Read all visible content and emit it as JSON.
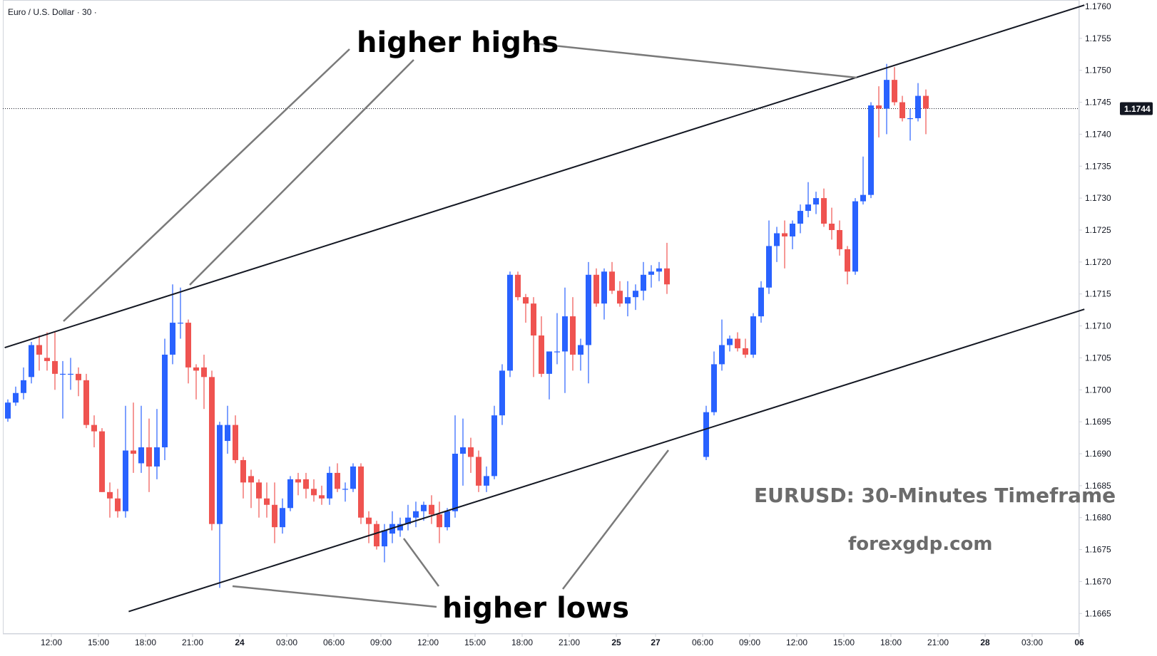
{
  "symbol_title": "Euro / U.S. Dollar · 30 ·",
  "current_price_label": "1.1744",
  "watermark": {
    "title": "EURUSD: 30-Minutes Timeframe",
    "site": "forexgdp.com"
  },
  "annotations": {
    "highs": "higher highs",
    "lows": "higher lows"
  },
  "colors": {
    "up": "#2962ff",
    "down": "#ef5350",
    "badge": "#131722",
    "trend": "#131722",
    "arrow": "#777777"
  },
  "chart_data": {
    "type": "candlestick",
    "x_ticks": [
      {
        "i": 6,
        "label": "12:00"
      },
      {
        "i": 12,
        "label": "15:00"
      },
      {
        "i": 18,
        "label": "18:00"
      },
      {
        "i": 24,
        "label": "21:00"
      },
      {
        "i": 30,
        "label": "24"
      },
      {
        "i": 36,
        "label": "03:00"
      },
      {
        "i": 42,
        "label": "06:00"
      },
      {
        "i": 48,
        "label": "09:00"
      },
      {
        "i": 54,
        "label": "12:00"
      },
      {
        "i": 60,
        "label": "15:00"
      },
      {
        "i": 66,
        "label": "18:00"
      },
      {
        "i": 72,
        "label": "21:00"
      },
      {
        "i": 78,
        "label": "25"
      },
      {
        "i": 83,
        "label": "27"
      },
      {
        "i": 89,
        "label": "06:00"
      },
      {
        "i": 95,
        "label": "09:00"
      },
      {
        "i": 101,
        "label": "12:00"
      },
      {
        "i": 107,
        "label": "15:00"
      },
      {
        "i": 113,
        "label": "18:00"
      },
      {
        "i": 119,
        "label": "21:00"
      },
      {
        "i": 125,
        "label": "28"
      },
      {
        "i": 131,
        "label": "03:00"
      },
      {
        "i": 137,
        "label": "06"
      }
    ],
    "y_ticks": [
      "1.1665",
      "1.1670",
      "1.1675",
      "1.1680",
      "1.1685",
      "1.1690",
      "1.1695",
      "1.1700",
      "1.1705",
      "1.1710",
      "1.1715",
      "1.1720",
      "1.1725",
      "1.1730",
      "1.1735",
      "1.1740",
      "1.1745",
      "1.1750",
      "1.1755",
      "1.1760"
    ],
    "ylim": [
      1.16618,
      1.1761
    ],
    "current_price": 1.1744,
    "candles": [
      {
        "o": 1.16955,
        "h": 1.16985,
        "l": 1.1695,
        "c": 1.1698
      },
      {
        "o": 1.1698,
        "h": 1.17005,
        "l": 1.16975,
        "c": 1.16995
      },
      {
        "o": 1.16995,
        "h": 1.17035,
        "l": 1.16985,
        "c": 1.17015
      },
      {
        "o": 1.1702,
        "h": 1.17075,
        "l": 1.1701,
        "c": 1.1707
      },
      {
        "o": 1.1707,
        "h": 1.17085,
        "l": 1.1703,
        "c": 1.17055
      },
      {
        "o": 1.1705,
        "h": 1.1709,
        "l": 1.1703,
        "c": 1.17045
      },
      {
        "o": 1.17045,
        "h": 1.1709,
        "l": 1.17,
        "c": 1.17025
      },
      {
        "o": 1.17025,
        "h": 1.17045,
        "l": 1.16955,
        "c": 1.17025
      },
      {
        "o": 1.17025,
        "h": 1.1705,
        "l": 1.17,
        "c": 1.17025
      },
      {
        "o": 1.17025,
        "h": 1.17035,
        "l": 1.1699,
        "c": 1.17015
      },
      {
        "o": 1.17015,
        "h": 1.17025,
        "l": 1.1694,
        "c": 1.16945
      },
      {
        "o": 1.16945,
        "h": 1.1696,
        "l": 1.1691,
        "c": 1.16935
      },
      {
        "o": 1.16935,
        "h": 1.1694,
        "l": 1.1684,
        "c": 1.1684
      },
      {
        "o": 1.1684,
        "h": 1.16855,
        "l": 1.168,
        "c": 1.1683
      },
      {
        "o": 1.1683,
        "h": 1.16845,
        "l": 1.168,
        "c": 1.1681
      },
      {
        "o": 1.1681,
        "h": 1.16975,
        "l": 1.168,
        "c": 1.16905
      },
      {
        "o": 1.16905,
        "h": 1.1698,
        "l": 1.1687,
        "c": 1.169
      },
      {
        "o": 1.16885,
        "h": 1.16975,
        "l": 1.1687,
        "c": 1.1691
      },
      {
        "o": 1.1691,
        "h": 1.16955,
        "l": 1.1684,
        "c": 1.1688
      },
      {
        "o": 1.1688,
        "h": 1.1697,
        "l": 1.1686,
        "c": 1.1691
      },
      {
        "o": 1.1691,
        "h": 1.1708,
        "l": 1.1689,
        "c": 1.17055
      },
      {
        "o": 1.17055,
        "h": 1.17165,
        "l": 1.1704,
        "c": 1.17105
      },
      {
        "o": 1.17105,
        "h": 1.1716,
        "l": 1.1708,
        "c": 1.17105
      },
      {
        "o": 1.17105,
        "h": 1.1711,
        "l": 1.1701,
        "c": 1.17035
      },
      {
        "o": 1.17035,
        "h": 1.1704,
        "l": 1.16985,
        "c": 1.1703
      },
      {
        "o": 1.17035,
        "h": 1.17055,
        "l": 1.1697,
        "c": 1.1702
      },
      {
        "o": 1.1702,
        "h": 1.1703,
        "l": 1.1678,
        "c": 1.1679
      },
      {
        "o": 1.1679,
        "h": 1.1695,
        "l": 1.1669,
        "c": 1.16945
      },
      {
        "o": 1.1692,
        "h": 1.16975,
        "l": 1.169,
        "c": 1.16945
      },
      {
        "o": 1.16945,
        "h": 1.1696,
        "l": 1.16885,
        "c": 1.1689
      },
      {
        "o": 1.1689,
        "h": 1.16895,
        "l": 1.1683,
        "c": 1.16855
      },
      {
        "o": 1.16865,
        "h": 1.16875,
        "l": 1.16815,
        "c": 1.16855
      },
      {
        "o": 1.16855,
        "h": 1.1686,
        "l": 1.168,
        "c": 1.1683
      },
      {
        "o": 1.1683,
        "h": 1.16855,
        "l": 1.168,
        "c": 1.1682
      },
      {
        "o": 1.1682,
        "h": 1.16855,
        "l": 1.1676,
        "c": 1.16785
      },
      {
        "o": 1.16785,
        "h": 1.1683,
        "l": 1.16775,
        "c": 1.16815
      },
      {
        "o": 1.16815,
        "h": 1.16865,
        "l": 1.1681,
        "c": 1.1686
      },
      {
        "o": 1.1686,
        "h": 1.1687,
        "l": 1.16835,
        "c": 1.16855
      },
      {
        "o": 1.1686,
        "h": 1.1687,
        "l": 1.1683,
        "c": 1.16845
      },
      {
        "o": 1.16845,
        "h": 1.1686,
        "l": 1.16825,
        "c": 1.16835
      },
      {
        "o": 1.16835,
        "h": 1.1685,
        "l": 1.1682,
        "c": 1.1683
      },
      {
        "o": 1.1683,
        "h": 1.1688,
        "l": 1.1682,
        "c": 1.1687
      },
      {
        "o": 1.1687,
        "h": 1.16885,
        "l": 1.1684,
        "c": 1.16845
      },
      {
        "o": 1.16845,
        "h": 1.16855,
        "l": 1.16825,
        "c": 1.16845
      },
      {
        "o": 1.16845,
        "h": 1.16885,
        "l": 1.1684,
        "c": 1.1688
      },
      {
        "o": 1.1688,
        "h": 1.16885,
        "l": 1.1679,
        "c": 1.168
      },
      {
        "o": 1.168,
        "h": 1.1681,
        "l": 1.1676,
        "c": 1.1679
      },
      {
        "o": 1.1679,
        "h": 1.16795,
        "l": 1.1675,
        "c": 1.16755
      },
      {
        "o": 1.16755,
        "h": 1.1679,
        "l": 1.1673,
        "c": 1.1678
      },
      {
        "o": 1.16775,
        "h": 1.1681,
        "l": 1.1676,
        "c": 1.1679
      },
      {
        "o": 1.1678,
        "h": 1.168,
        "l": 1.1677,
        "c": 1.1679
      },
      {
        "o": 1.1679,
        "h": 1.1682,
        "l": 1.1678,
        "c": 1.168
      },
      {
        "o": 1.168,
        "h": 1.16825,
        "l": 1.16785,
        "c": 1.1681
      },
      {
        "o": 1.1681,
        "h": 1.16825,
        "l": 1.16795,
        "c": 1.1682
      },
      {
        "o": 1.1682,
        "h": 1.16835,
        "l": 1.1679,
        "c": 1.16805
      },
      {
        "o": 1.16805,
        "h": 1.16825,
        "l": 1.1676,
        "c": 1.16785
      },
      {
        "o": 1.16785,
        "h": 1.16815,
        "l": 1.1678,
        "c": 1.1681
      },
      {
        "o": 1.1681,
        "h": 1.1696,
        "l": 1.168,
        "c": 1.169
      },
      {
        "o": 1.169,
        "h": 1.16955,
        "l": 1.1685,
        "c": 1.1691
      },
      {
        "o": 1.1691,
        "h": 1.16925,
        "l": 1.1687,
        "c": 1.16895
      },
      {
        "o": 1.16895,
        "h": 1.16905,
        "l": 1.1684,
        "c": 1.1685
      },
      {
        "o": 1.1685,
        "h": 1.1688,
        "l": 1.1684,
        "c": 1.16865
      },
      {
        "o": 1.16865,
        "h": 1.16975,
        "l": 1.1686,
        "c": 1.1696
      },
      {
        "o": 1.1696,
        "h": 1.1704,
        "l": 1.16945,
        "c": 1.1703
      },
      {
        "o": 1.1703,
        "h": 1.17185,
        "l": 1.1702,
        "c": 1.1718
      },
      {
        "o": 1.1718,
        "h": 1.17185,
        "l": 1.1714,
        "c": 1.17145
      },
      {
        "o": 1.17145,
        "h": 1.1715,
        "l": 1.17105,
        "c": 1.17135
      },
      {
        "o": 1.17135,
        "h": 1.17145,
        "l": 1.1702,
        "c": 1.17085
      },
      {
        "o": 1.17085,
        "h": 1.17115,
        "l": 1.1702,
        "c": 1.17025
      },
      {
        "o": 1.17025,
        "h": 1.1706,
        "l": 1.16985,
        "c": 1.1706
      },
      {
        "o": 1.1706,
        "h": 1.1712,
        "l": 1.1704,
        "c": 1.1706
      },
      {
        "o": 1.1706,
        "h": 1.1716,
        "l": 1.16995,
        "c": 1.17115
      },
      {
        "o": 1.17115,
        "h": 1.17145,
        "l": 1.1703,
        "c": 1.17055
      },
      {
        "o": 1.17055,
        "h": 1.1708,
        "l": 1.1703,
        "c": 1.1707
      },
      {
        "o": 1.1707,
        "h": 1.172,
        "l": 1.1701,
        "c": 1.1718
      },
      {
        "o": 1.1718,
        "h": 1.1719,
        "l": 1.1713,
        "c": 1.17135
      },
      {
        "o": 1.17135,
        "h": 1.1719,
        "l": 1.1711,
        "c": 1.17185
      },
      {
        "o": 1.17185,
        "h": 1.172,
        "l": 1.1715,
        "c": 1.17155
      },
      {
        "o": 1.17155,
        "h": 1.1717,
        "l": 1.1713,
        "c": 1.17135
      },
      {
        "o": 1.17135,
        "h": 1.1717,
        "l": 1.17115,
        "c": 1.17145
      },
      {
        "o": 1.17145,
        "h": 1.17165,
        "l": 1.17125,
        "c": 1.17155
      },
      {
        "o": 1.17155,
        "h": 1.172,
        "l": 1.1714,
        "c": 1.1718
      },
      {
        "o": 1.1718,
        "h": 1.17195,
        "l": 1.1716,
        "c": 1.17185
      },
      {
        "o": 1.17185,
        "h": 1.172,
        "l": 1.1717,
        "c": 1.1719
      },
      {
        "o": 1.1719,
        "h": 1.1723,
        "l": 1.1715,
        "c": 1.17165
      },
      {
        "o": 1.16895,
        "h": 1.16975,
        "l": 1.1689,
        "c": 1.16965
      },
      {
        "o": 1.16965,
        "h": 1.1706,
        "l": 1.1696,
        "c": 1.1704
      },
      {
        "o": 1.1704,
        "h": 1.1711,
        "l": 1.1703,
        "c": 1.1707
      },
      {
        "o": 1.1707,
        "h": 1.17085,
        "l": 1.1706,
        "c": 1.1708
      },
      {
        "o": 1.1708,
        "h": 1.1709,
        "l": 1.1706,
        "c": 1.17065
      },
      {
        "o": 1.17065,
        "h": 1.1708,
        "l": 1.1705,
        "c": 1.17055
      },
      {
        "o": 1.17055,
        "h": 1.1712,
        "l": 1.1705,
        "c": 1.17115
      },
      {
        "o": 1.17115,
        "h": 1.1717,
        "l": 1.17105,
        "c": 1.1716
      },
      {
        "o": 1.1716,
        "h": 1.17265,
        "l": 1.1715,
        "c": 1.17225
      },
      {
        "o": 1.17225,
        "h": 1.17255,
        "l": 1.172,
        "c": 1.17245
      },
      {
        "o": 1.17245,
        "h": 1.17265,
        "l": 1.1719,
        "c": 1.1724
      },
      {
        "o": 1.1724,
        "h": 1.17265,
        "l": 1.1722,
        "c": 1.1726
      },
      {
        "o": 1.1726,
        "h": 1.1729,
        "l": 1.17245,
        "c": 1.1728
      },
      {
        "o": 1.1728,
        "h": 1.17325,
        "l": 1.1727,
        "c": 1.1729
      },
      {
        "o": 1.1729,
        "h": 1.1731,
        "l": 1.17275,
        "c": 1.173
      },
      {
        "o": 1.173,
        "h": 1.17315,
        "l": 1.17255,
        "c": 1.1726
      },
      {
        "o": 1.1726,
        "h": 1.17285,
        "l": 1.17235,
        "c": 1.1725
      },
      {
        "o": 1.1725,
        "h": 1.17265,
        "l": 1.1721,
        "c": 1.1722
      },
      {
        "o": 1.1722,
        "h": 1.17225,
        "l": 1.17165,
        "c": 1.17185
      },
      {
        "o": 1.17185,
        "h": 1.173,
        "l": 1.1718,
        "c": 1.17295
      },
      {
        "o": 1.17295,
        "h": 1.17365,
        "l": 1.1729,
        "c": 1.17305
      },
      {
        "o": 1.17305,
        "h": 1.1745,
        "l": 1.173,
        "c": 1.17445
      },
      {
        "o": 1.17445,
        "h": 1.17475,
        "l": 1.17395,
        "c": 1.1744
      },
      {
        "o": 1.1744,
        "h": 1.1751,
        "l": 1.174,
        "c": 1.17485
      },
      {
        "o": 1.17485,
        "h": 1.17505,
        "l": 1.17445,
        "c": 1.1745
      },
      {
        "o": 1.1745,
        "h": 1.1746,
        "l": 1.1742,
        "c": 1.17425
      },
      {
        "o": 1.17425,
        "h": 1.1744,
        "l": 1.1739,
        "c": 1.17425
      },
      {
        "o": 1.17425,
        "h": 1.1748,
        "l": 1.1742,
        "c": 1.1746
      },
      {
        "o": 1.1746,
        "h": 1.1747,
        "l": 1.174,
        "c": 1.1744
      }
    ],
    "slot_of_candle_start": 0,
    "gap_after_candle": 84,
    "trendlines": [
      {
        "name": "upper",
        "from": {
          "i": -0.4,
          "p": 1.17066
        },
        "to": {
          "i": 137.2,
          "p": 1.17602
        }
      },
      {
        "name": "lower",
        "from": {
          "i": 15.4,
          "p": 1.16653
        },
        "to": {
          "i": 137.2,
          "p": 1.17126
        }
      }
    ]
  }
}
